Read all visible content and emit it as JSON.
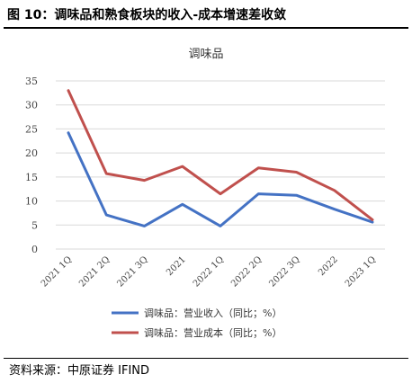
{
  "figure_title": "图 10：调味品和熟食板块的收入-成本增速差收敛",
  "source": "资料来源：中原证券 IFIND",
  "chart_data": {
    "type": "line",
    "title": "调味品",
    "categories": [
      "2021 1Q",
      "2021 2Q",
      "2021 3Q",
      "2021",
      "2022 1Q",
      "2022 2Q",
      "2022 3Q",
      "2022",
      "2023 1Q"
    ],
    "ylim": [
      0,
      35
    ],
    "yticks": [
      0,
      5,
      10,
      15,
      20,
      25,
      30,
      35
    ],
    "grid": true,
    "legend_position": "bottom",
    "series": [
      {
        "name": "调味品：营业收入（同比；%）",
        "color": "#4472C4",
        "values": [
          24.2,
          7.1,
          4.8,
          9.3,
          4.8,
          11.5,
          11.2,
          8.3,
          5.6
        ]
      },
      {
        "name": "调味品：营业成本（同比；%）",
        "color": "#C0504D",
        "values": [
          33.0,
          15.7,
          14.3,
          17.2,
          11.5,
          16.9,
          16.0,
          12.2,
          6.1
        ]
      }
    ]
  }
}
